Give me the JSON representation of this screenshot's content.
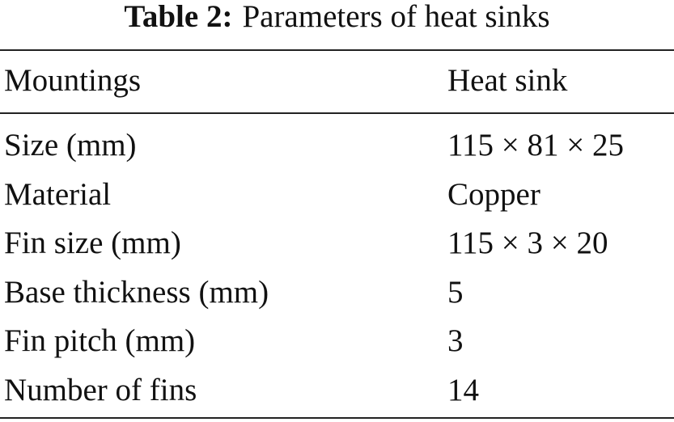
{
  "caption": {
    "label": "Table 2:",
    "text": "Parameters of heat sinks"
  },
  "table": {
    "header": [
      "Mountings",
      "Heat sink"
    ],
    "rows": [
      [
        "Size (mm)",
        "115 × 81 × 25"
      ],
      [
        "Material",
        "Copper"
      ],
      [
        "Fin size (mm)",
        "115 × 3 × 20"
      ],
      [
        "Base thickness (mm)",
        "5"
      ],
      [
        "Fin pitch (mm)",
        "3"
      ],
      [
        "Number of fins",
        "14"
      ]
    ]
  }
}
